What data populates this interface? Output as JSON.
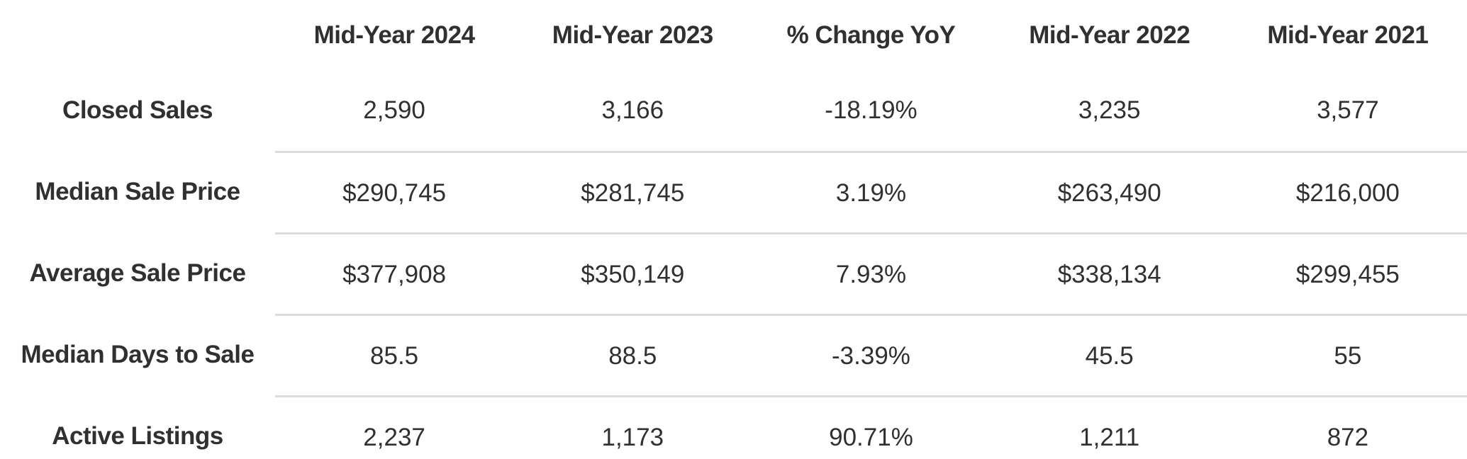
{
  "colors": {
    "text": "#303030",
    "divider": "#dcdcdc",
    "background": "#ffffff"
  },
  "chart_data": {
    "type": "table",
    "columns": [
      "",
      "Mid-Year 2024",
      "Mid-Year 2023",
      "% Change YoY",
      "Mid-Year 2022",
      "Mid-Year 2021"
    ],
    "rows": [
      {
        "label": "Closed Sales",
        "values": [
          "2,590",
          "3,166",
          "-18.19%",
          "3,235",
          "3,577"
        ]
      },
      {
        "label": "Median Sale Price",
        "values": [
          "$290,745",
          "$281,745",
          "3.19%",
          "$263,490",
          "$216,000"
        ]
      },
      {
        "label": "Average Sale Price",
        "values": [
          "$377,908",
          "$350,149",
          "7.93%",
          "$338,134",
          "$299,455"
        ]
      },
      {
        "label": "Median Days to Sale",
        "values": [
          "85.5",
          "88.5",
          "-3.39%",
          "45.5",
          "55"
        ]
      },
      {
        "label": "Active Listings",
        "values": [
          "2,237",
          "1,173",
          "90.71%",
          "1,211",
          "872"
        ]
      }
    ]
  }
}
